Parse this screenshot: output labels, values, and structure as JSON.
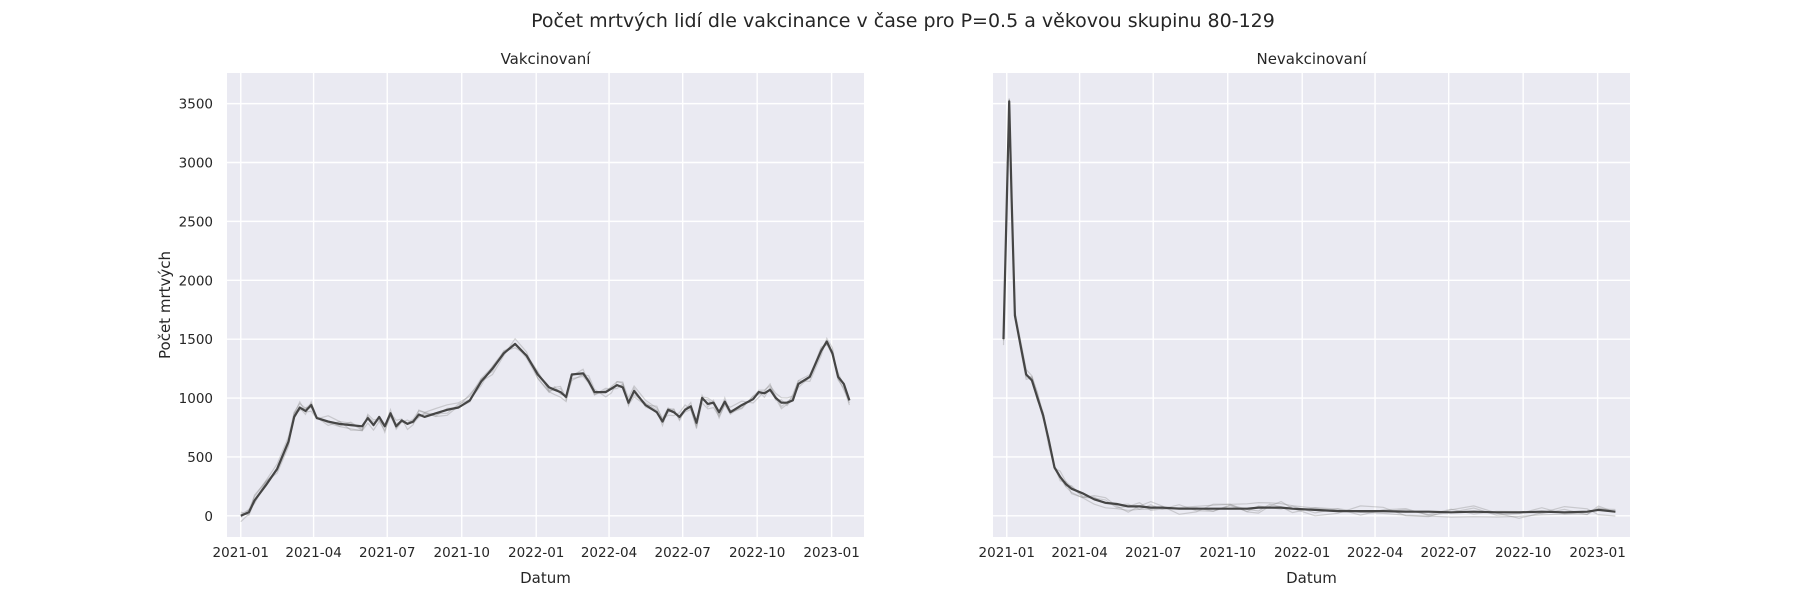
{
  "figure": {
    "title": "Počet mrtvých lidí dle vakcinance v čase pro P=0.5 a věkovou skupinu 80-129"
  },
  "chart_data": [
    {
      "type": "line",
      "title": "Vakcinovaní",
      "xlabel": "Datum",
      "ylabel": "Počet mrtvých",
      "ylim": [
        -180,
        3760
      ],
      "xlim": [
        "2020-12-15",
        "2023-02-10"
      ],
      "yticks": [
        0,
        500,
        1000,
        1500,
        2000,
        2500,
        3000,
        3500
      ],
      "xticks": [
        "2021-01",
        "2021-04",
        "2021-07",
        "2021-10",
        "2022-01",
        "2022-04",
        "2022-07",
        "2022-10",
        "2023-01"
      ],
      "grid": true,
      "series": [
        {
          "x": [
            "2021-01-01",
            "2021-01-11",
            "2021-01-18",
            "2021-02-01",
            "2021-02-15",
            "2021-03-01",
            "2021-03-08",
            "2021-03-15",
            "2021-03-22",
            "2021-03-29",
            "2021-04-05",
            "2021-04-19",
            "2021-05-03",
            "2021-05-17",
            "2021-05-31",
            "2021-06-07",
            "2021-06-14",
            "2021-06-21",
            "2021-06-28",
            "2021-07-05",
            "2021-07-12",
            "2021-07-19",
            "2021-07-26",
            "2021-08-02",
            "2021-08-09",
            "2021-08-16",
            "2021-08-30",
            "2021-09-13",
            "2021-09-27",
            "2021-10-11",
            "2021-10-25",
            "2021-11-08",
            "2021-11-22",
            "2021-12-06",
            "2021-12-20",
            "2022-01-03",
            "2022-01-17",
            "2022-01-24",
            "2022-01-31",
            "2022-02-07",
            "2022-02-14",
            "2022-02-28",
            "2022-03-07",
            "2022-03-14",
            "2022-03-28",
            "2022-04-04",
            "2022-04-11",
            "2022-04-18",
            "2022-04-25",
            "2022-05-02",
            "2022-05-16",
            "2022-05-30",
            "2022-06-06",
            "2022-06-13",
            "2022-06-20",
            "2022-06-27",
            "2022-07-04",
            "2022-07-11",
            "2022-07-18",
            "2022-07-25",
            "2022-08-01",
            "2022-08-08",
            "2022-08-15",
            "2022-08-22",
            "2022-08-29",
            "2022-09-12",
            "2022-09-26",
            "2022-10-03",
            "2022-10-10",
            "2022-10-17",
            "2022-10-24",
            "2022-10-31",
            "2022-11-07",
            "2022-11-14",
            "2022-11-21",
            "2022-12-05",
            "2022-12-19",
            "2022-12-26",
            "2023-01-02",
            "2023-01-09",
            "2023-01-16",
            "2023-01-23"
          ],
          "y": [
            0,
            30,
            130,
            260,
            400,
            630,
            840,
            920,
            890,
            940,
            830,
            800,
            780,
            770,
            760,
            830,
            770,
            840,
            760,
            870,
            760,
            810,
            780,
            800,
            860,
            840,
            870,
            900,
            920,
            980,
            1140,
            1250,
            1380,
            1460,
            1360,
            1200,
            1090,
            1070,
            1050,
            1010,
            1200,
            1210,
            1140,
            1050,
            1050,
            1080,
            1110,
            1090,
            960,
            1060,
            940,
            880,
            800,
            900,
            880,
            840,
            900,
            930,
            790,
            1000,
            950,
            960,
            880,
            970,
            880,
            940,
            990,
            1050,
            1040,
            1070,
            1000,
            960,
            960,
            980,
            1120,
            1180,
            1400,
            1480,
            1380,
            1180,
            1120,
            980
          ]
        },
        {
          "x": [],
          "y": []
        }
      ]
    },
    {
      "type": "line",
      "title": "Nevakcinovaní",
      "xlabel": "Datum",
      "ylabel": "",
      "ylim": [
        -180,
        3760
      ],
      "xlim": [
        "2020-12-15",
        "2023-02-10"
      ],
      "xticks": [
        "2021-01",
        "2021-04",
        "2021-07",
        "2021-10",
        "2022-01",
        "2022-04",
        "2022-07",
        "2022-10",
        "2023-01"
      ],
      "grid": true,
      "series": [
        {
          "x": [
            "2020-12-28",
            "2021-01-04",
            "2021-01-07",
            "2021-01-11",
            "2021-01-18",
            "2021-01-25",
            "2021-02-01",
            "2021-02-08",
            "2021-02-15",
            "2021-02-22",
            "2021-03-01",
            "2021-03-08",
            "2021-03-15",
            "2021-03-22",
            "2021-04-05",
            "2021-04-19",
            "2021-05-03",
            "2021-05-17",
            "2021-05-31",
            "2021-06-14",
            "2021-06-28",
            "2021-07-12",
            "2021-08-02",
            "2021-08-23",
            "2021-09-13",
            "2021-10-04",
            "2021-10-25",
            "2021-11-08",
            "2021-11-22",
            "2021-12-06",
            "2021-12-20",
            "2022-01-17",
            "2022-02-14",
            "2022-03-14",
            "2022-04-11",
            "2022-05-09",
            "2022-06-06",
            "2022-07-04",
            "2022-08-01",
            "2022-08-29",
            "2022-09-26",
            "2022-10-24",
            "2022-11-21",
            "2022-12-19",
            "2023-01-02",
            "2023-01-23"
          ],
          "y": [
            1500,
            3520,
            2700,
            1700,
            1450,
            1200,
            1150,
            1000,
            850,
            640,
            410,
            330,
            270,
            230,
            190,
            140,
            110,
            100,
            80,
            80,
            70,
            70,
            60,
            60,
            60,
            60,
            60,
            70,
            70,
            70,
            60,
            50,
            40,
            40,
            40,
            35,
            35,
            30,
            35,
            30,
            30,
            35,
            30,
            35,
            50,
            35
          ]
        },
        {
          "x": [],
          "y": []
        }
      ]
    }
  ]
}
